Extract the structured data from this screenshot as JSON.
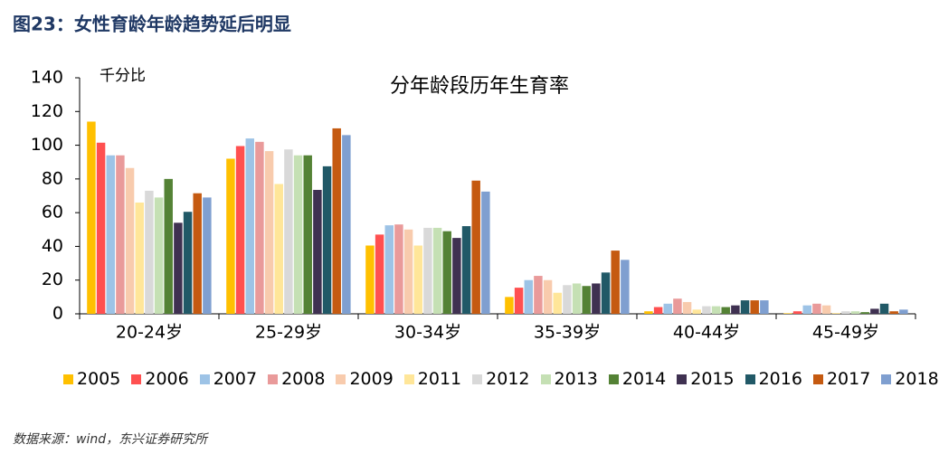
{
  "header": "图23：女性育龄年龄趋势延后明显",
  "source": "数据来源：wind，东兴证券研究所",
  "chart_data": {
    "type": "bar",
    "title": "分年龄段历年生育率",
    "y_label": "千分比",
    "categories": [
      "20-24岁",
      "25-29岁",
      "30-34岁",
      "35-39岁",
      "40-44岁",
      "45-49岁"
    ],
    "series": [
      {
        "name": "2005",
        "color": "#FFC000",
        "values": [
          114,
          92,
          40.5,
          10,
          1.5,
          0.3
        ]
      },
      {
        "name": "2006",
        "color": "#FF5050",
        "values": [
          101.5,
          99.5,
          47,
          15.5,
          4,
          1.5
        ]
      },
      {
        "name": "2007",
        "color": "#9DC3E6",
        "values": [
          94,
          104,
          52.5,
          20,
          6,
          5
        ]
      },
      {
        "name": "2008",
        "color": "#E99A9A",
        "values": [
          94,
          102,
          53,
          22.5,
          9,
          6
        ]
      },
      {
        "name": "2009",
        "color": "#F8CBAD",
        "values": [
          86.5,
          96.5,
          50,
          20,
          7,
          5
        ]
      },
      {
        "name": "2011",
        "color": "#FFE699",
        "values": [
          66,
          77,
          40.5,
          12.5,
          2.5,
          0.5
        ]
      },
      {
        "name": "2012",
        "color": "#D9D9D9",
        "values": [
          73,
          97.5,
          51,
          17,
          4.5,
          1.5
        ]
      },
      {
        "name": "2013",
        "color": "#C5E0B4",
        "values": [
          69,
          94,
          51,
          18,
          4.5,
          1.5
        ]
      },
      {
        "name": "2014",
        "color": "#548235",
        "values": [
          80,
          94,
          49,
          16.5,
          4,
          1
        ]
      },
      {
        "name": "2015",
        "color": "#3F3151",
        "values": [
          54,
          73.5,
          45,
          18,
          5,
          3
        ]
      },
      {
        "name": "2016",
        "color": "#215967",
        "values": [
          60.5,
          87.5,
          52,
          24.5,
          8,
          6
        ]
      },
      {
        "name": "2017",
        "color": "#C55A11",
        "values": [
          71.5,
          110,
          79,
          37.5,
          8,
          1.5
        ]
      },
      {
        "name": "2018",
        "color": "#7F9FD0",
        "values": [
          69,
          106,
          72.5,
          32,
          8,
          2.5
        ]
      }
    ],
    "ylim": [
      0,
      140
    ],
    "yticks": [
      0,
      20,
      40,
      60,
      80,
      100,
      120,
      140
    ],
    "grid": false
  }
}
